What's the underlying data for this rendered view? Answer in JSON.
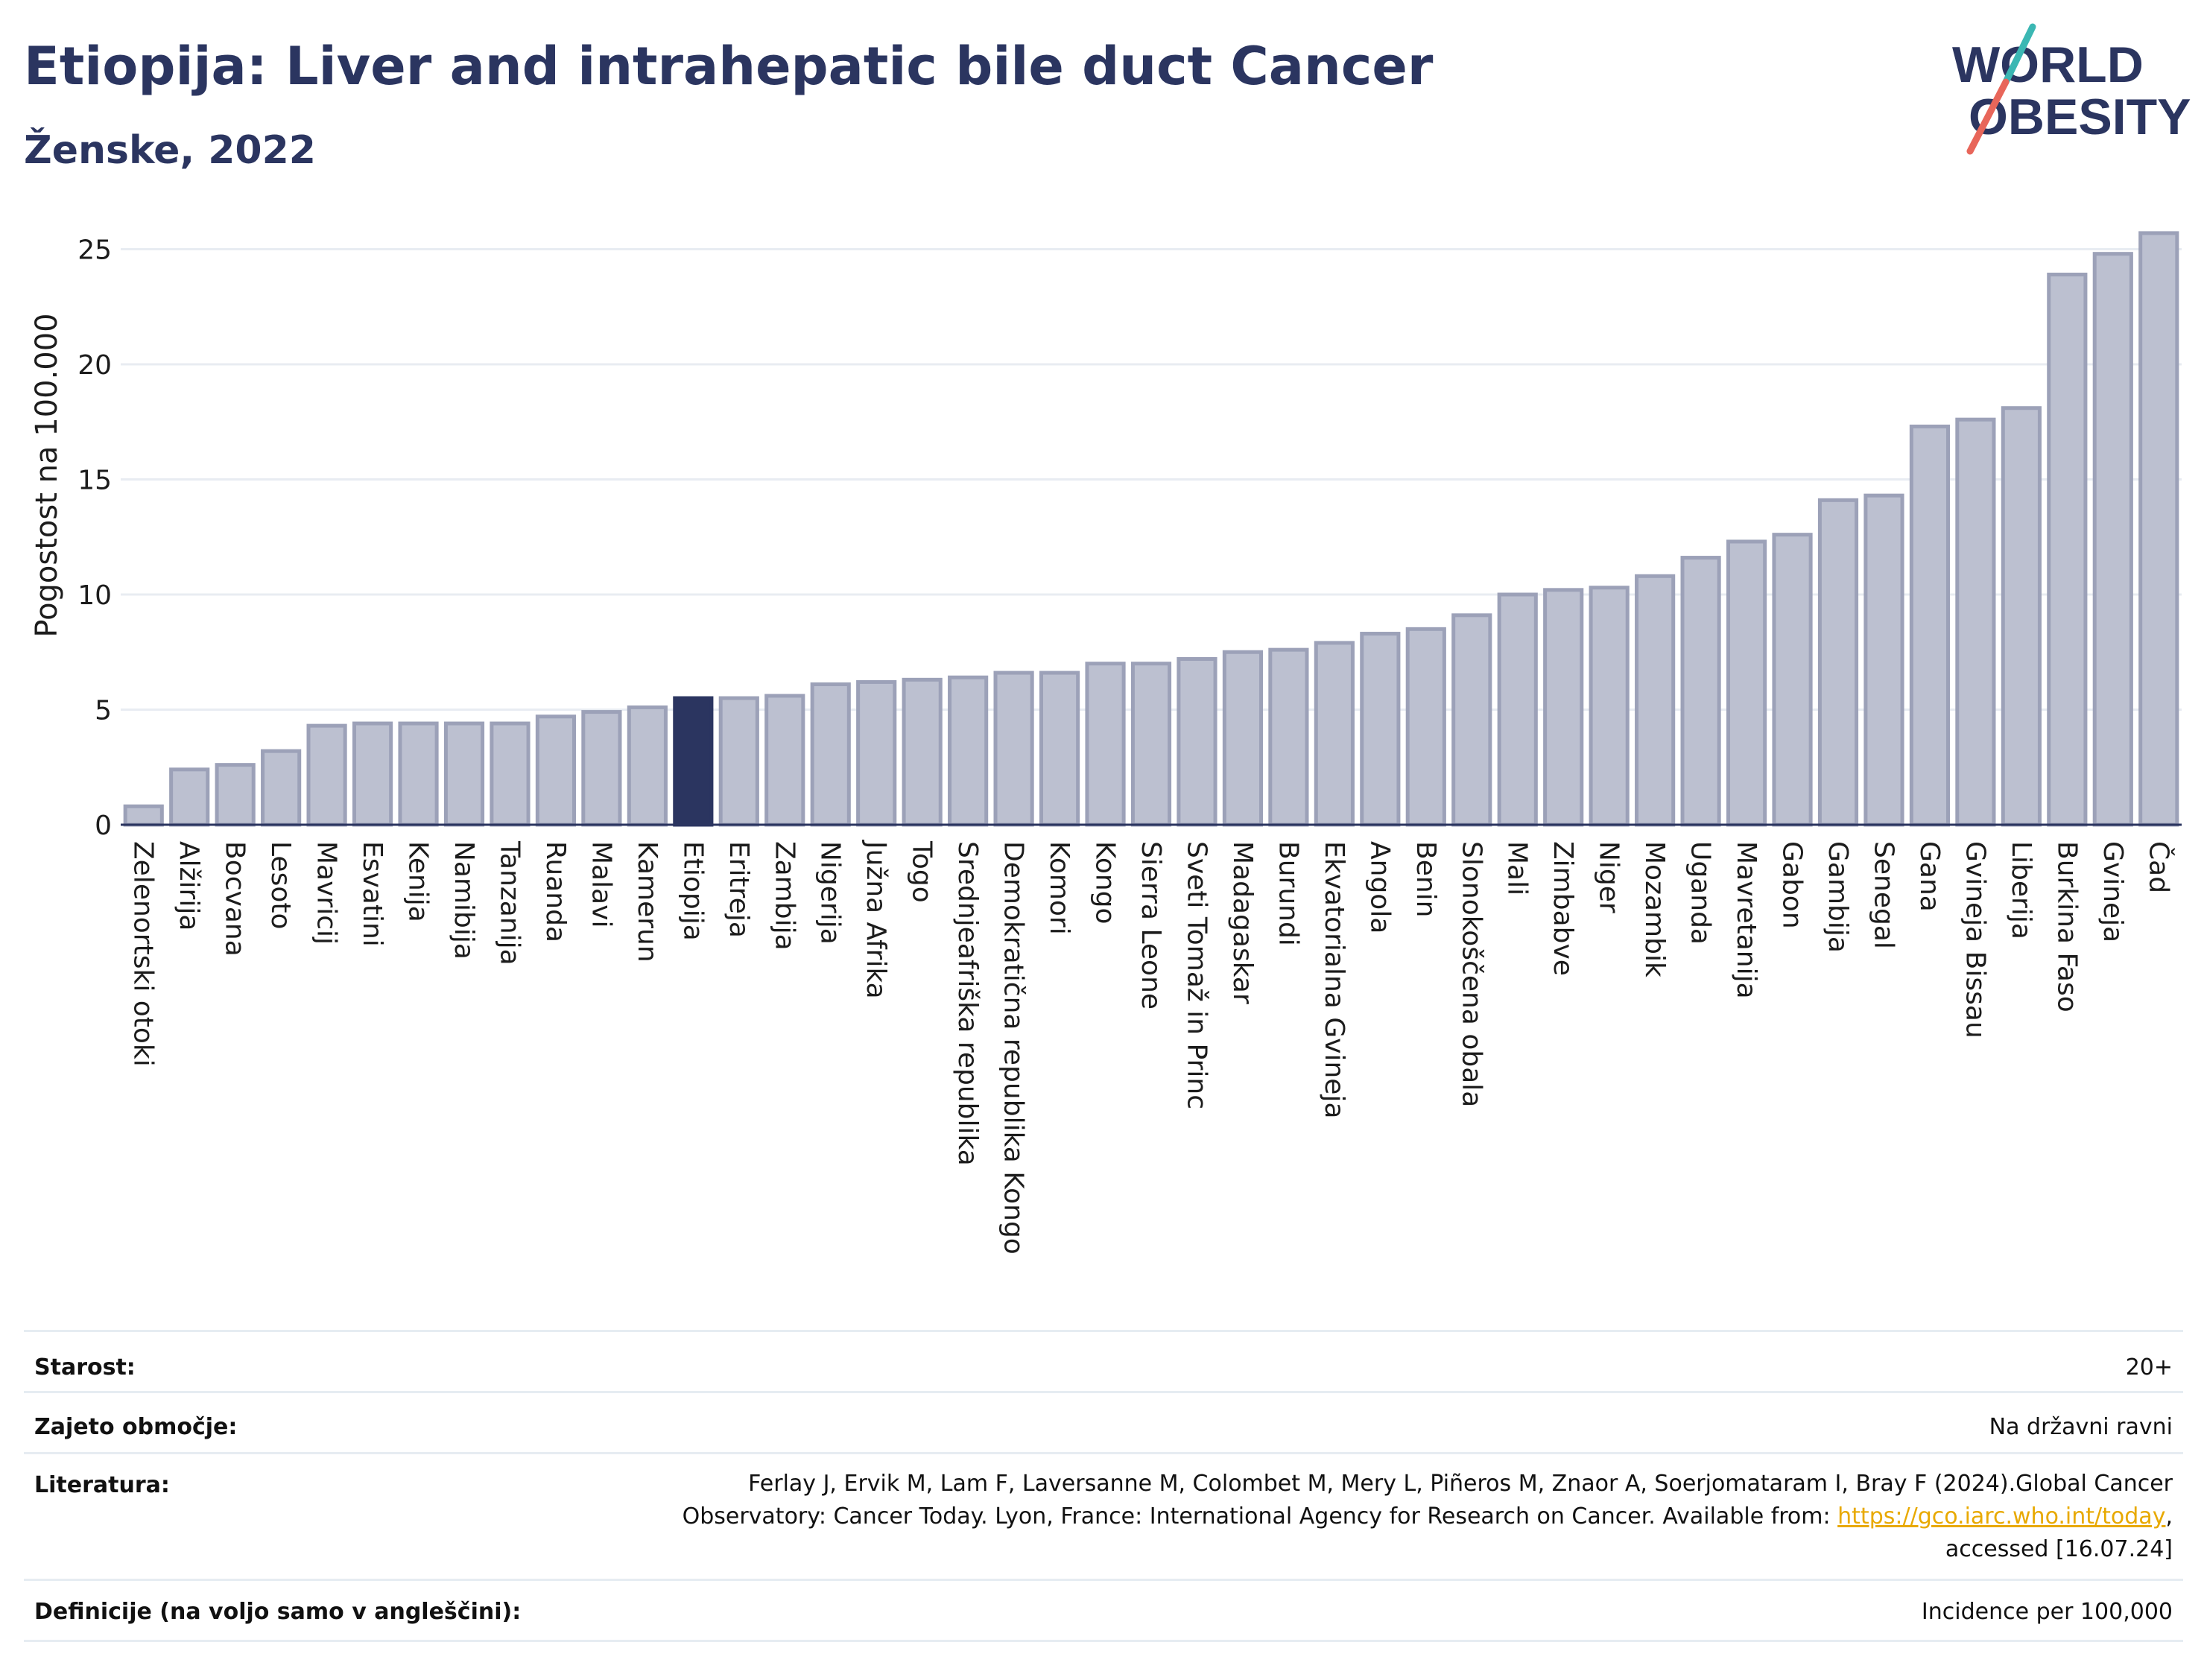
{
  "title": "Etiopija: Liver and intrahepatic bile duct Cancer",
  "subtitle": "Ženske, 2022",
  "logo": {
    "line1": "WORLD",
    "line2": "OBESITY",
    "accent_colors": [
      "#3bb7b3",
      "#e8665a"
    ]
  },
  "colors": {
    "bar": "#bcc0d0",
    "bar_stroke": "#9ca1b8",
    "highlight": "#2b3560",
    "text": "#2b3560",
    "grid": "#e8ecf2",
    "link": "#e8a900"
  },
  "chart_data": {
    "type": "bar",
    "title": "Etiopija: Liver and intrahepatic bile duct Cancer",
    "ylabel": "Pogostost na 100.000",
    "xlabel": "",
    "ylim": [
      0,
      26.5
    ],
    "yticks": [
      0,
      5,
      10,
      15,
      20,
      25
    ],
    "grid": true,
    "highlight": "Etiopija",
    "categories": [
      "Zelenortski otoki",
      "Alžirija",
      "Bocvana",
      "Lesoto",
      "Mavricij",
      "Esvatini",
      "Kenija",
      "Namibija",
      "Tanzanija",
      "Ruanda",
      "Malavi",
      "Kamerun",
      "Etiopija",
      "Eritreja",
      "Zambija",
      "Nigerija",
      "Južna Afrika",
      "Togo",
      "Srednjeafriška republika",
      "Demokratična republika Kongo",
      "Komori",
      "Kongo",
      "Sierra Leone",
      "Sveti Tomaž in Princ",
      "Madagaskar",
      "Burundi",
      "Ekvatorialna Gvineja",
      "Angola",
      "Benin",
      "Slonokoščena obala",
      "Mali",
      "Zimbabve",
      "Niger",
      "Mozambik",
      "Uganda",
      "Mavretanija",
      "Gabon",
      "Gambija",
      "Senegal",
      "Gana",
      "Gvineja Bissau",
      "Liberija",
      "Burkina Faso",
      "Gvineja",
      "Čad"
    ],
    "values": [
      0.8,
      2.4,
      2.6,
      3.2,
      4.3,
      4.4,
      4.4,
      4.4,
      4.4,
      4.7,
      4.9,
      5.1,
      5.5,
      5.5,
      5.6,
      6.1,
      6.2,
      6.3,
      6.4,
      6.6,
      6.6,
      7.0,
      7.0,
      7.2,
      7.5,
      7.6,
      7.9,
      8.3,
      8.5,
      9.1,
      10.0,
      10.2,
      10.3,
      10.8,
      11.6,
      12.3,
      12.6,
      14.1,
      14.3,
      17.3,
      17.6,
      18.1,
      23.9,
      24.8,
      25.7
    ]
  },
  "meta": {
    "age_label": "Starost:",
    "age_value": "20+",
    "coverage_label": "Zajeto območje:",
    "coverage_value": "Na državni ravni",
    "literature_label": "Literatura:",
    "literature_line1": "Ferlay J, Ervik M, Lam F, Laversanne M, Colombet M, Mery L, Piñeros M, Znaor A, Soerjomataram I, Bray F (2024).Global Cancer",
    "literature_line2_pre": "Observatory: Cancer Today. Lyon, France: International Agency for Research on Cancer. Available from: ",
    "literature_link": "https://gco.iarc.who.int/today",
    "literature_line2_post": ",",
    "literature_line3": "accessed [16.07.24]",
    "definitions_label": "Definicije (na voljo samo v angleščini):",
    "definitions_value": "Incidence per 100,000"
  }
}
